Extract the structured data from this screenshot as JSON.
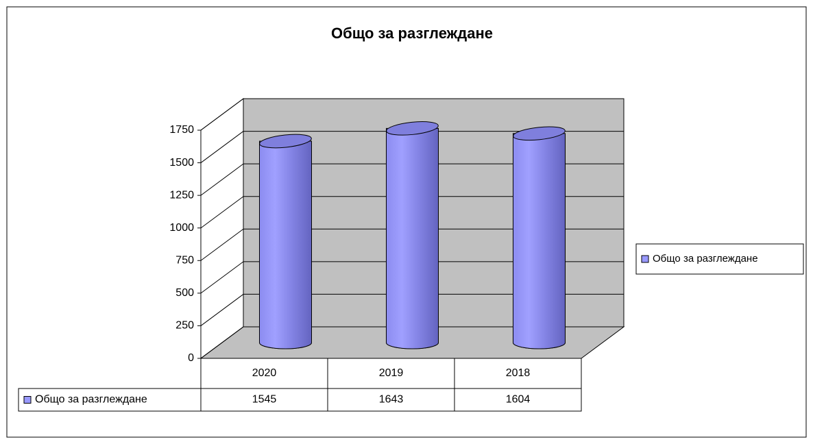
{
  "chart_data": {
    "type": "bar",
    "title": "Общо за разглеждане",
    "categories": [
      "2020",
      "2019",
      "2018"
    ],
    "series": [
      {
        "name": "Общо за разглеждане",
        "color": "#9999ff",
        "values": [
          1545,
          1643,
          1604
        ]
      }
    ],
    "ylim": [
      0,
      1750
    ],
    "yticks": [
      0,
      250,
      500,
      750,
      1000,
      1250,
      1500,
      1750
    ],
    "grid": true,
    "legend": "right",
    "data_table": true
  }
}
